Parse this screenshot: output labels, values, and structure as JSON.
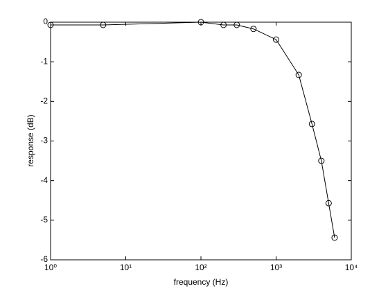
{
  "chart_data": {
    "type": "line",
    "xlabel": "frequency (Hz)",
    "ylabel": "response (dB)",
    "x": [
      1,
      5,
      100,
      200,
      300,
      500,
      1000,
      2000,
      3000,
      4000,
      5000,
      6000
    ],
    "series": [
      {
        "color": "#000000",
        "marker": "circle",
        "values": [
          -0.07,
          -0.07,
          0,
          -0.07,
          -0.07,
          -0.17,
          -0.44,
          -1.33,
          -2.57,
          -3.5,
          -4.57,
          -5.44
        ]
      }
    ],
    "xscale": "log",
    "xlim": [
      1,
      10000
    ],
    "xticks": [
      {
        "value": 1,
        "label": "10⁰"
      },
      {
        "value": 10,
        "label": "10¹"
      },
      {
        "value": 100,
        "label": "10²"
      },
      {
        "value": 1000,
        "label": "10³"
      },
      {
        "value": 10000,
        "label": "10⁴"
      }
    ],
    "ylim": [
      -6,
      0
    ],
    "yticks": [
      -6,
      -5,
      -4,
      -3,
      -2,
      -1,
      0
    ],
    "grid": false
  }
}
